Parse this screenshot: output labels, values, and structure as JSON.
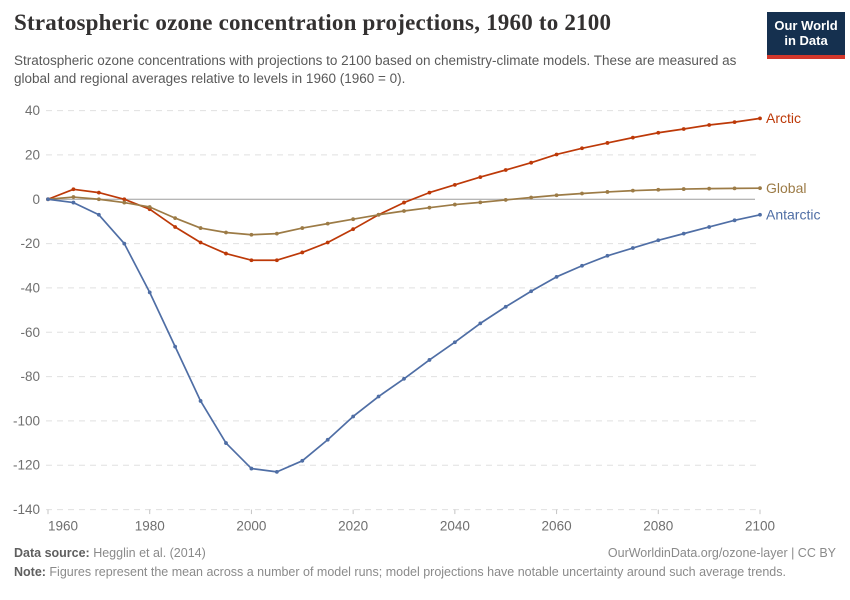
{
  "header": {
    "title": "Stratospheric ozone concentration projections, 1960 to 2100",
    "subtitle": "Stratospheric ozone concentrations with projections to 2100 based on chemistry-climate models. These are measured as global and regional averages relative to levels in 1960 (1960 = 0).",
    "logo": {
      "line1": "Our World",
      "line2": "in Data",
      "bg_color": "#15304f",
      "stripe_color": "#d3372b"
    }
  },
  "chart_data": {
    "type": "line",
    "title": "Stratospheric ozone concentration projections, 1960 to 2100",
    "xlabel": "",
    "ylabel": "",
    "x": [
      1960,
      1965,
      1970,
      1975,
      1980,
      1985,
      1990,
      1995,
      2000,
      2005,
      2010,
      2015,
      2020,
      2025,
      2030,
      2035,
      2040,
      2045,
      2050,
      2055,
      2060,
      2065,
      2070,
      2075,
      2080,
      2085,
      2090,
      2095,
      2100
    ],
    "series": [
      {
        "name": "Arctic",
        "color": "#bd3908",
        "values": [
          0,
          4.5,
          3,
          0,
          -4.5,
          -12.5,
          -19.5,
          -24.5,
          -27.5,
          -27.5,
          -24,
          -19.5,
          -13.5,
          -7,
          -1.5,
          3,
          6.5,
          10,
          13.2,
          16.5,
          20.2,
          23,
          25.4,
          27.8,
          30,
          31.7,
          33.5,
          34.8,
          36.5
        ]
      },
      {
        "name": "Global",
        "color": "#9c7b46",
        "values": [
          0,
          1,
          0,
          -1.5,
          -3.5,
          -8.5,
          -13,
          -15,
          -16,
          -15.5,
          -13,
          -11,
          -9,
          -7,
          -5.3,
          -3.8,
          -2.4,
          -1.4,
          -0.3,
          0.8,
          1.8,
          2.6,
          3.3,
          3.9,
          4.3,
          4.6,
          4.8,
          4.9,
          5
        ]
      },
      {
        "name": "Antarctic",
        "color": "#4f6ea5",
        "values": [
          0,
          -1.5,
          -7,
          -20,
          -42,
          -66.5,
          -91,
          -110,
          -121.5,
          -123,
          -118,
          -108.5,
          -98,
          -89,
          -81,
          -72.5,
          -64.5,
          -56,
          -48.5,
          -41.5,
          -35,
          -30,
          -25.5,
          -22,
          -18.5,
          -15.5,
          -12.5,
          -9.5,
          -7
        ]
      }
    ],
    "xlim": [
      1960,
      2100
    ],
    "ylim": [
      -140,
      40
    ],
    "xticks": [
      1960,
      1980,
      2000,
      2020,
      2040,
      2060,
      2080,
      2100
    ],
    "yticks": [
      40,
      20,
      0,
      -20,
      -40,
      -60,
      -80,
      -100,
      -120,
      -140
    ],
    "grid": "horizontal-dashed",
    "zero_line": true,
    "legend_position": "end-of-line-labels",
    "marker": "dot"
  },
  "footer": {
    "source_label": "Data source:",
    "source_value": " Hegglin et al. (2014)",
    "link": "OurWorldinData.org/ozone-layer | CC BY",
    "note_label": "Note:",
    "note_value": " Figures represent the mean across a number of model runs; model projections have notable uncertainty around such average trends."
  }
}
